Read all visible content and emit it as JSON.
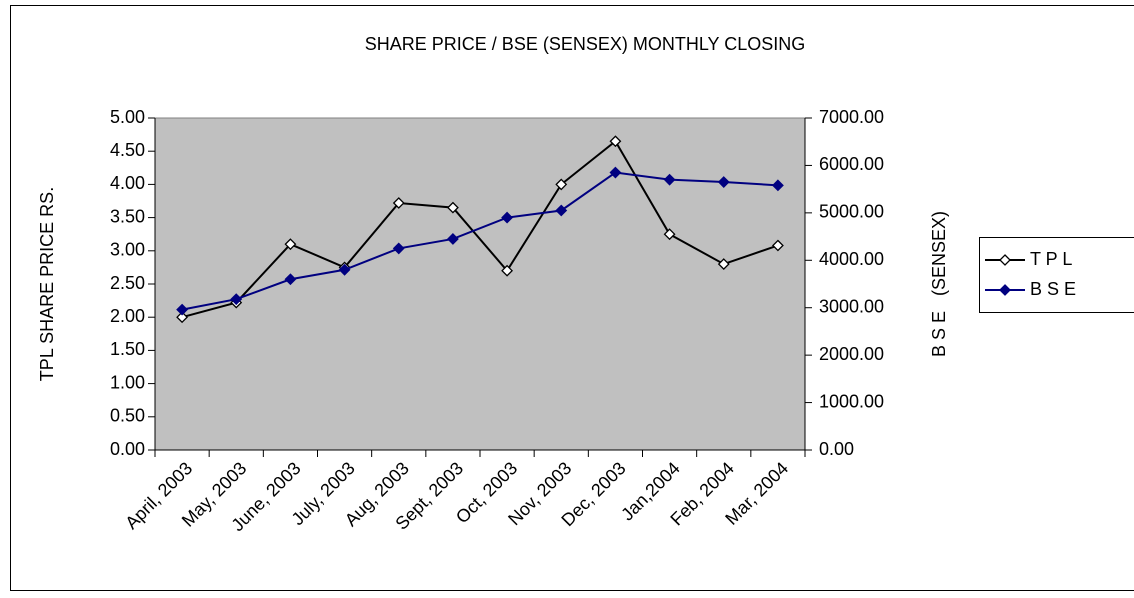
{
  "chart_data": {
    "type": "line",
    "title": "SHARE PRICE / BSE (SENSEX) MONTHLY CLOSING",
    "y_label": "TPL SHARE PRICE RS.",
    "y2_label": "B S E   (SENSEX)",
    "categories": [
      "April, 2003",
      "May, 2003",
      "June, 2003",
      "July, 2003",
      "Aug, 2003",
      "Sept, 2003",
      "Oct, 2003",
      "Nov, 2003",
      "Dec, 2003",
      "Jan,2004",
      "Feb, 2004",
      "Mar, 2004"
    ],
    "series": [
      {
        "name": "T P L",
        "color": "#000000",
        "marker_fill": "#ffffff",
        "values": [
          2.0,
          2.22,
          3.1,
          2.75,
          3.72,
          3.65,
          2.7,
          4.0,
          4.65,
          3.25,
          2.8,
          3.08
        ]
      },
      {
        "name": "B S E",
        "color": "#000080",
        "marker_fill": "#000080",
        "axis": "y2",
        "values": [
          2960,
          3180,
          3600,
          3800,
          4250,
          4450,
          4900,
          5050,
          5850,
          5700,
          5650,
          5580
        ]
      }
    ],
    "ylim": [
      0,
      5
    ],
    "yticks": [
      {
        "value": 0,
        "label": "0.00"
      },
      {
        "value": 0.5,
        "label": "0.50"
      },
      {
        "value": 1,
        "label": "1.00"
      },
      {
        "value": 1.5,
        "label": "1.50"
      },
      {
        "value": 2,
        "label": "2.00"
      },
      {
        "value": 2.5,
        "label": "2.50"
      },
      {
        "value": 3,
        "label": "3.00"
      },
      {
        "value": 3.5,
        "label": "3.50"
      },
      {
        "value": 4,
        "label": "4.00"
      },
      {
        "value": 4.5,
        "label": "4.50"
      },
      {
        "value": 5,
        "label": "5.00"
      }
    ],
    "y2lim": [
      0,
      7000
    ],
    "y2ticks": [
      {
        "value": 0,
        "label": "0.00"
      },
      {
        "value": 1000,
        "label": "1000.00"
      },
      {
        "value": 2000,
        "label": "2000.00"
      },
      {
        "value": 3000,
        "label": "3000.00"
      },
      {
        "value": 4000,
        "label": "4000.00"
      },
      {
        "value": 5000,
        "label": "5000.00"
      },
      {
        "value": 6000,
        "label": "6000.00"
      },
      {
        "value": 7000,
        "label": "7000.00"
      }
    ],
    "plot_background": "#c0c0c0",
    "legend": "right"
  }
}
